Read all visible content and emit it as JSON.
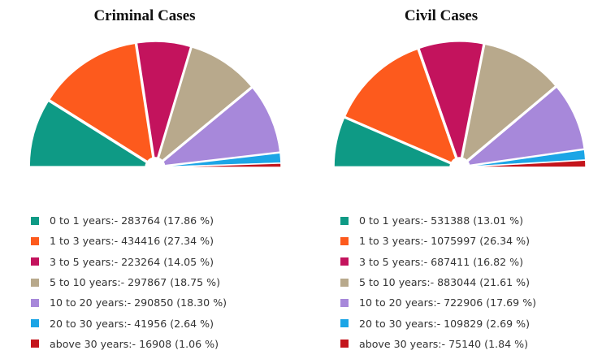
{
  "chart_data": [
    {
      "type": "pie",
      "title": "Criminal Cases",
      "categories": [
        "0 to 1 years",
        "1 to 3 years",
        "3 to 5 years",
        "5 to 10 years",
        "10 to 20 years",
        "20 to 30 years",
        "above 30 years"
      ],
      "values": [
        283764,
        434416,
        223264,
        297867,
        290850,
        41956,
        16908
      ],
      "percents": [
        17.86,
        27.34,
        14.05,
        18.75,
        18.3,
        2.64,
        1.06
      ],
      "colors": [
        "#0e9a85",
        "#fd5a1d",
        "#c3135d",
        "#b8a98c",
        "#a788da",
        "#1ba5e6",
        "#c4151c"
      ],
      "legend_labels": [
        "0 to 1 years:- 283764 (17.86 %)",
        "1 to 3 years:- 434416 (27.34 %)",
        "3 to 5 years:- 223264 (14.05 %)",
        "5 to 10 years:- 297867 (18.75 %)",
        "10 to 20 years:- 290850 (18.30 %)",
        "20 to 30 years:- 41956 (2.64 %)",
        "above 30 years:- 16908 (1.06 %)"
      ],
      "style": "half-donut (semicircle), exploded slices, small hole at center",
      "legend_position": "bottom"
    },
    {
      "type": "pie",
      "title": "Civil Cases",
      "categories": [
        "0 to 1 years",
        "1 to 3 years",
        "3 to 5 years",
        "5 to 10 years",
        "10 to 20 years",
        "20 to 30 years",
        "above 30 years"
      ],
      "values": [
        531388,
        1075997,
        687411,
        883044,
        722906,
        109829,
        75140
      ],
      "percents": [
        13.01,
        26.34,
        16.82,
        21.61,
        17.69,
        2.69,
        1.84
      ],
      "colors": [
        "#0e9a85",
        "#fd5a1d",
        "#c3135d",
        "#b8a98c",
        "#a788da",
        "#1ba5e6",
        "#c4151c"
      ],
      "legend_labels": [
        "0 to 1 years:- 531388 (13.01 %)",
        "1 to 3 years:- 1075997 (26.34 %)",
        "3 to 5 years:- 687411 (16.82 %)",
        "5 to 10 years:- 883044 (21.61 %)",
        "10 to 20 years:- 722906 (17.69 %)",
        "20 to 30 years:- 109829 (2.69 %)",
        "above 30 years:- 75140 (1.84 %)"
      ],
      "style": "half-donut (semicircle), exploded slices, small hole at center",
      "legend_position": "bottom"
    }
  ]
}
